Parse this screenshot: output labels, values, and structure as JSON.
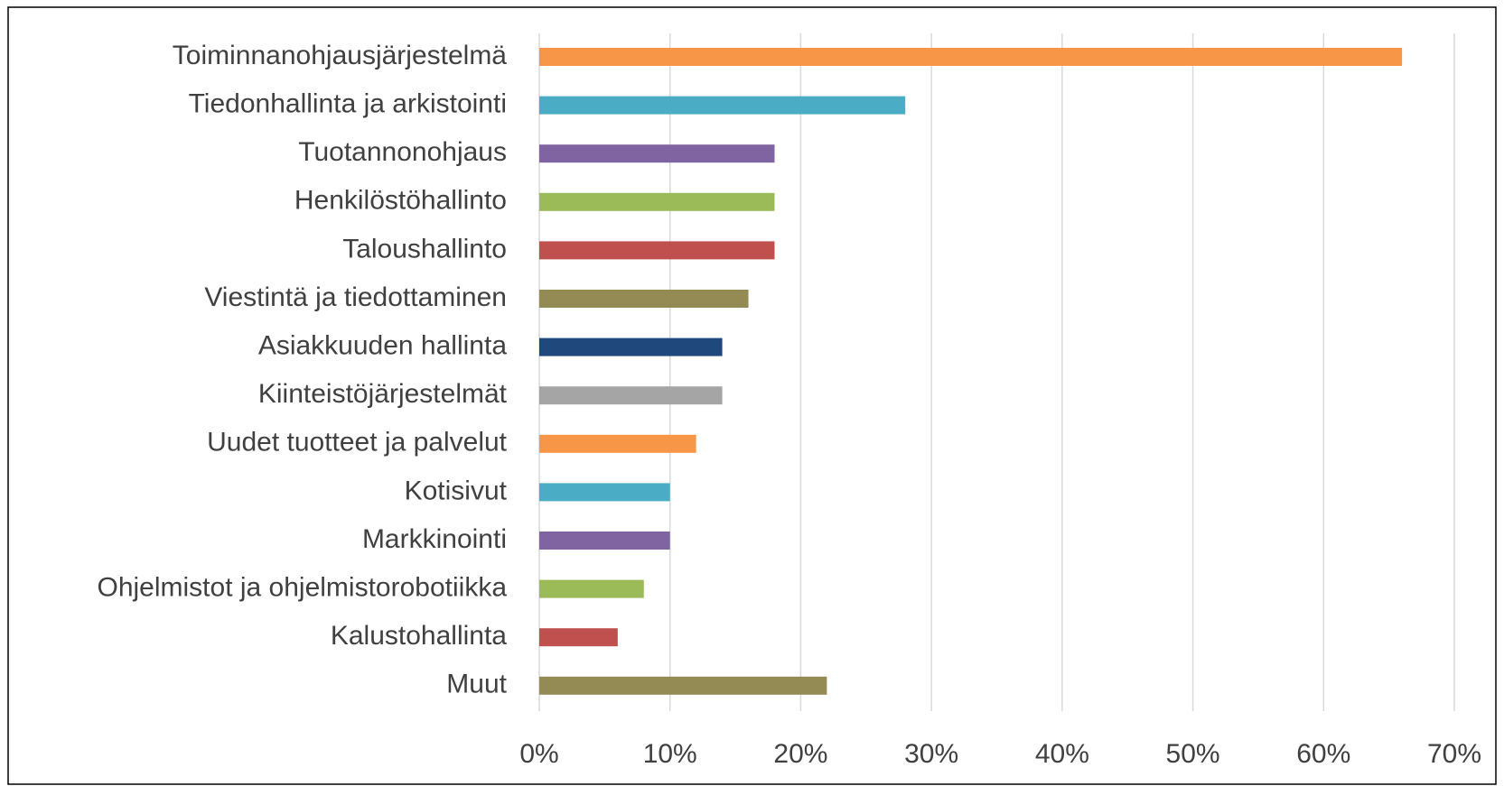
{
  "chart_data": {
    "type": "bar",
    "orientation": "horizontal",
    "categories": [
      "Toiminnanohjausjärjestelmä",
      "Tiedonhallinta ja arkistointi",
      "Tuotannonohjaus",
      "Henkilöstöhallinto",
      "Taloushallinto",
      "Viestintä ja tiedottaminen",
      "Asiakkuuden hallinta",
      "Kiinteistöjärjestelmät",
      "Uudet tuotteet ja palvelut",
      "Kotisivut",
      "Markkinointi",
      "Ohjelmistot ja ohjelmistorobotiikka",
      "Kalustohallinta",
      "Muut"
    ],
    "values": [
      66,
      28,
      18,
      18,
      18,
      16,
      14,
      14,
      12,
      10,
      10,
      8,
      6,
      22
    ],
    "colors": [
      "#f79646",
      "#4bacc6",
      "#8064a2",
      "#9bbb59",
      "#c0504d",
      "#948a54",
      "#1f497d",
      "#a5a5a5",
      "#f79646",
      "#4bacc6",
      "#8064a2",
      "#9bbb59",
      "#c0504d",
      "#948a54"
    ],
    "xlim": [
      0,
      70
    ],
    "xticks": [
      {
        "value": 0,
        "label": "0%"
      },
      {
        "value": 10,
        "label": "10%"
      },
      {
        "value": 20,
        "label": "20%"
      },
      {
        "value": 30,
        "label": "30%"
      },
      {
        "value": 40,
        "label": "40%"
      },
      {
        "value": 50,
        "label": "50%"
      },
      {
        "value": 60,
        "label": "60%"
      },
      {
        "value": 70,
        "label": "70%"
      }
    ],
    "grid": true
  }
}
